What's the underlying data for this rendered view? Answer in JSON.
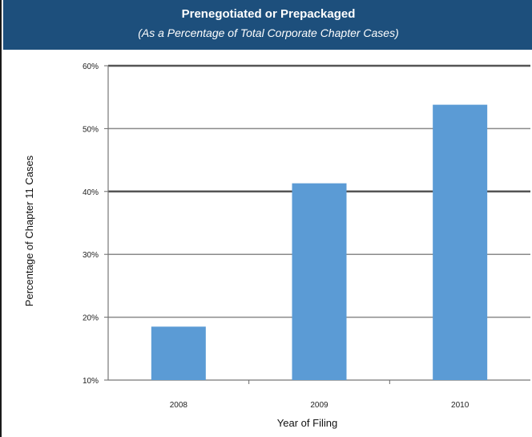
{
  "header": {
    "title": "Prenegotiated or Prepackaged",
    "subtitle": "(As a Percentage of Total Corporate Chapter Cases)"
  },
  "chart_data": {
    "type": "bar",
    "title": "Prenegotiated or Prepackaged",
    "subtitle": "(As a Percentage of Total Corporate Chapter Cases)",
    "categories": [
      "2008",
      "2009",
      "2010"
    ],
    "values": [
      18.5,
      41.3,
      53.8
    ],
    "ylim": [
      10,
      60
    ],
    "yticks": [
      "10%",
      "20%",
      "30%",
      "40%",
      "50%",
      "60%"
    ],
    "ytick_values": [
      10,
      20,
      30,
      40,
      50,
      60
    ],
    "xlabel": "Year of Filing",
    "ylabel": "Percentage of Chapter 11 Cases",
    "grid": true,
    "bar_color": "#5b9bd5",
    "header_color": "#1d4f7c"
  }
}
